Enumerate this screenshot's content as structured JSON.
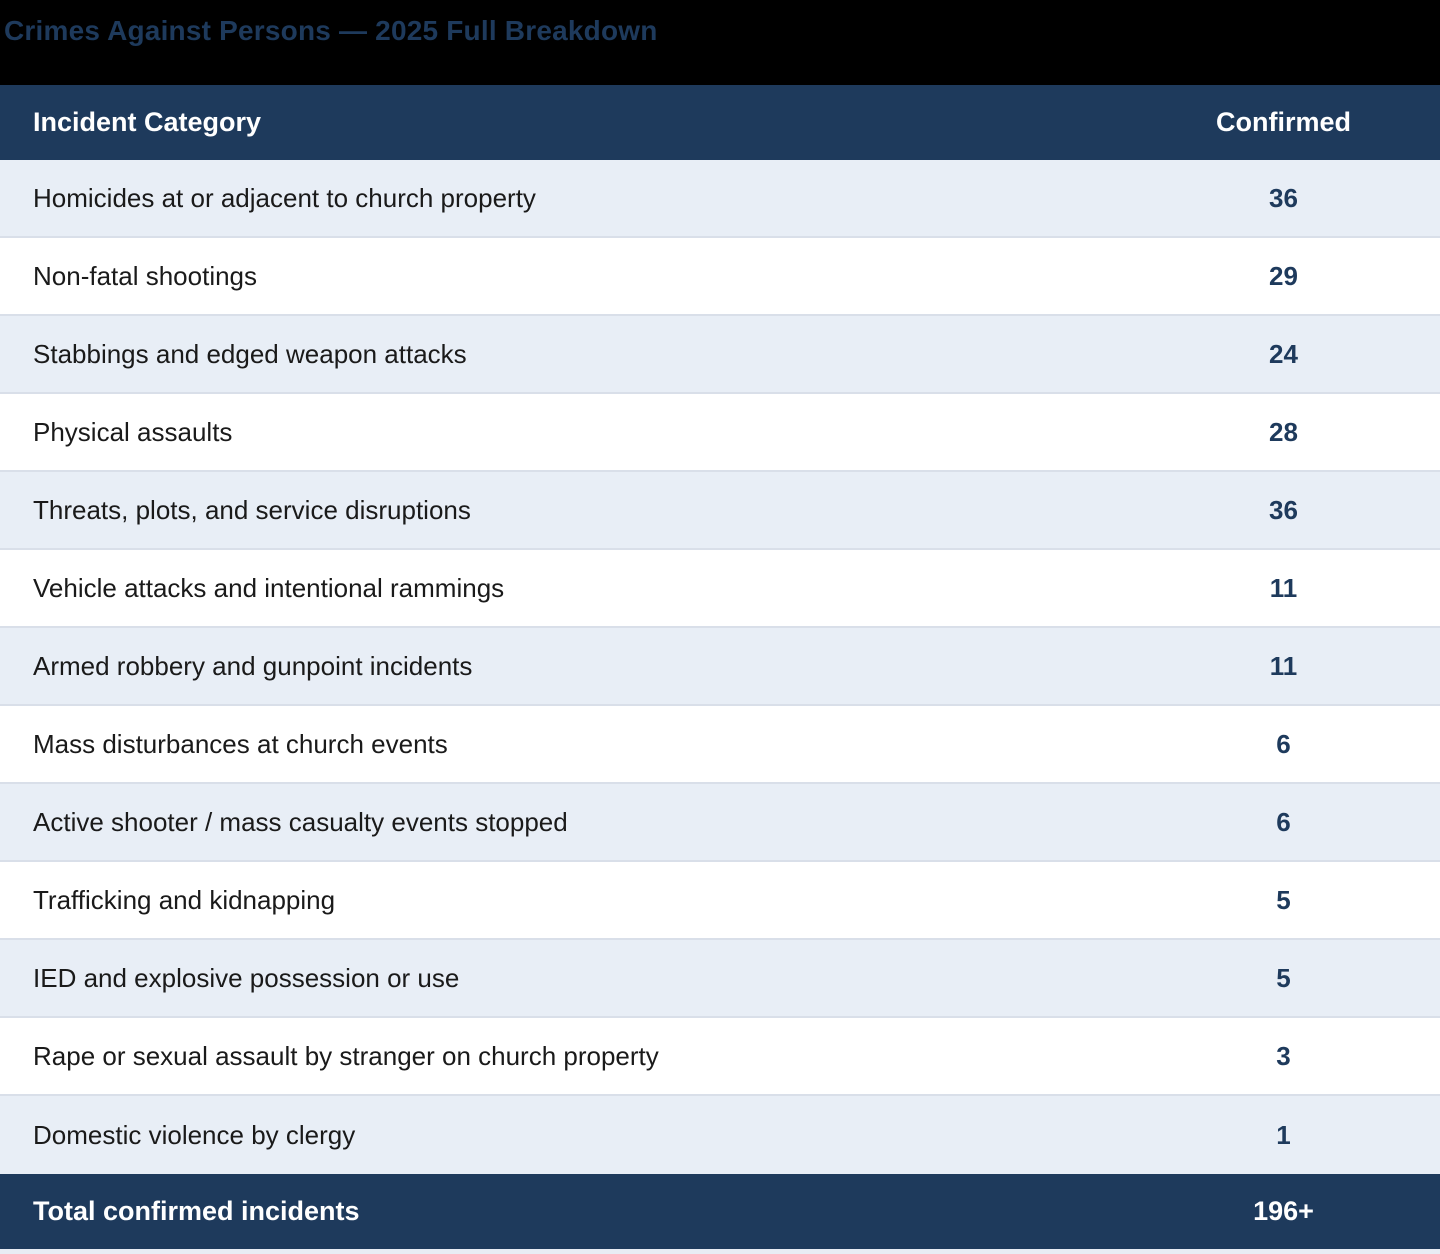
{
  "title": "Crimes Against Persons — 2025 Full Breakdown",
  "columns": {
    "category": "Incident Category",
    "confirmed": "Confirmed"
  },
  "rows": [
    {
      "category": "Homicides at or adjacent to church property",
      "value": "36"
    },
    {
      "category": "Non-fatal shootings",
      "value": "29"
    },
    {
      "category": "Stabbings and edged weapon attacks",
      "value": "24"
    },
    {
      "category": "Physical assaults",
      "value": "28"
    },
    {
      "category": "Threats, plots, and service disruptions",
      "value": "36"
    },
    {
      "category": "Vehicle attacks and intentional rammings",
      "value": "11"
    },
    {
      "category": "Armed robbery and gunpoint incidents",
      "value": "11"
    },
    {
      "category": "Mass disturbances at church events",
      "value": "6"
    },
    {
      "category": "Active shooter / mass casualty events stopped",
      "value": "6"
    },
    {
      "category": "Trafficking and kidnapping",
      "value": "5"
    },
    {
      "category": "IED and explosive possession or use",
      "value": "5"
    },
    {
      "category": "Rape or sexual assault by stranger on church property",
      "value": "3"
    },
    {
      "category": "Domestic violence by clergy",
      "value": "1"
    }
  ],
  "total": {
    "label": "Total confirmed incidents",
    "value": "196+"
  },
  "colors": {
    "header_bg": "#1e3a5c",
    "title_text": "#1e3a5c",
    "row_alt_bg": "#e8eef6",
    "row_bg": "#ffffff",
    "separator": "#d9dfe9",
    "value_text": "#1e3a5c",
    "category_text": "#1a1a1a",
    "header_text": "#ffffff",
    "page_bg": "#000000"
  },
  "chart_data": {
    "type": "table",
    "title": "Crimes Against Persons — 2025 Full Breakdown",
    "columns": [
      "Incident Category",
      "Confirmed"
    ],
    "categories": [
      "Homicides at or adjacent to church property",
      "Non-fatal shootings",
      "Stabbings and edged weapon attacks",
      "Physical assaults",
      "Threats, plots, and service disruptions",
      "Vehicle attacks and intentional rammings",
      "Armed robbery and gunpoint incidents",
      "Mass disturbances at church events",
      "Active shooter / mass casualty events stopped",
      "Trafficking and kidnapping",
      "IED and explosive possession or use",
      "Rape or sexual assault by stranger on church property",
      "Domestic violence by clergy"
    ],
    "values": [
      36,
      29,
      24,
      28,
      36,
      11,
      11,
      6,
      6,
      5,
      5,
      3,
      1
    ],
    "total_label": "Total confirmed incidents",
    "total_value": "196+"
  }
}
